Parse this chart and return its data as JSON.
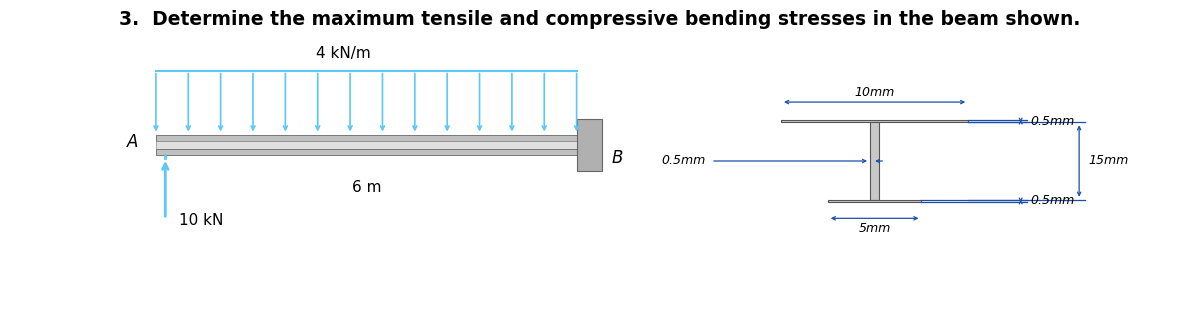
{
  "title": "3.  Determine the maximum tensile and compressive bending stresses in the beam shown.",
  "title_fontsize": 13.5,
  "arrow_color": "#5bc8f5",
  "beam_color_light": "#d8d8d8",
  "beam_color_dark": "#a8a8a8",
  "beam_edge_color": "#888888",
  "i_color": "#c8c8c8",
  "i_edge_color": "#555555",
  "dim_color": "#1a4faa",
  "load_label": "4 kN/m",
  "span_label": "6 m",
  "A_label": "A",
  "B_label": "B",
  "force_label": "10 kN",
  "dim_10mm": "10mm",
  "dim_05mm_top": "0.5mm",
  "dim_05mm_web": "0.5mm",
  "dim_15mm": "15mm",
  "dim_05mm_bot": "0.5mm",
  "dim_5mm": "5mm",
  "n_arrows": 14
}
